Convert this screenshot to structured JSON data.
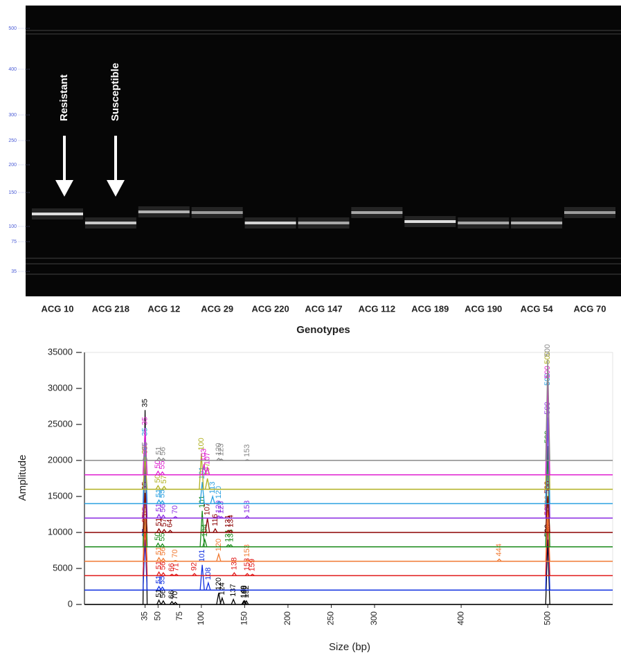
{
  "gel": {
    "ladder": [
      500,
      400,
      300,
      250,
      200,
      150,
      100,
      75,
      35
    ],
    "arrows": [
      "Resistant",
      "Susceptible"
    ],
    "lanes": [
      "ACG 10",
      "ACG 218",
      "ACG 12",
      "ACG 29",
      "ACG 220",
      "ACG 147",
      "ACG 112",
      "ACG 189",
      "ACG 190",
      "ACG 54",
      "ACG 70"
    ],
    "x_label": "Genotypes"
  },
  "chart_data": {
    "type": "line",
    "x_label": "Size (bp)",
    "y_label": "Amplitude",
    "xlim": [
      -35,
      575
    ],
    "ylim": [
      0,
      35000
    ],
    "xticks": [
      35,
      50,
      75,
      100,
      150,
      200,
      250,
      300,
      400,
      500
    ],
    "yticks": [
      0,
      5000,
      10000,
      15000,
      20000,
      25000,
      30000,
      35000
    ],
    "series": [
      {
        "color": "#000000",
        "offset": 0,
        "x": [
          35,
          51,
          56,
          66,
          70,
          120,
          124,
          137,
          149,
          150,
          152,
          500
        ],
        "values": [
          27000,
          600,
          500,
          400,
          300,
          1600,
          900,
          700,
          500,
          500,
          500,
          9000
        ]
      },
      {
        "color": "#1030e0",
        "offset": 2000,
        "x": [
          35,
          51,
          55,
          101,
          108,
          500
        ],
        "values": [
          9000,
          2500,
          2400,
          5500,
          3000,
          12000
        ]
      },
      {
        "color": "#e01818",
        "offset": 4000,
        "x": [
          35,
          51,
          56,
          66,
          71,
          92,
          138,
          153,
          159,
          500
        ],
        "values": [
          11000,
          4500,
          4400,
          4200,
          4200,
          4300,
          4400,
          4300,
          4200,
          12000
        ]
      },
      {
        "color": "#f07830",
        "offset": 6000,
        "x": [
          35,
          51,
          56,
          70,
          120,
          153,
          444,
          500
        ],
        "values": [
          12000,
          6500,
          6400,
          6100,
          7000,
          6200,
          6300,
          13000
        ]
      },
      {
        "color": "#1a8a1a",
        "offset": 8000,
        "x": [
          35,
          50,
          55,
          101,
          104,
          131,
          134,
          500
        ],
        "values": [
          20500,
          8500,
          8400,
          13000,
          9000,
          8300,
          8300,
          22000
        ]
      },
      {
        "color": "#8b0000",
        "offset": 10000,
        "x": [
          35,
          51,
          57,
          64,
          107,
          116,
          131,
          134,
          500
        ],
        "values": [
          15500,
          10500,
          10400,
          10300,
          12000,
          10500,
          10300,
          10300,
          15000
        ]
      },
      {
        "color": "#8a2be2",
        "offset": 12000,
        "x": [
          35,
          51,
          56,
          70,
          120,
          123,
          153,
          500
        ],
        "values": [
          21000,
          12500,
          12400,
          12200,
          12300,
          12200,
          12300,
          26000
        ]
      },
      {
        "color": "#2aa0e0",
        "offset": 14000,
        "x": [
          35,
          51,
          55,
          101,
          113,
          120,
          500
        ],
        "values": [
          23000,
          14500,
          14400,
          17000,
          15000,
          14300,
          30000
        ]
      },
      {
        "color": "#b0b020",
        "offset": 16000,
        "x": [
          35,
          50,
          57,
          100,
          107,
          500
        ],
        "values": [
          20500,
          16500,
          16400,
          21000,
          17500,
          33000
        ]
      },
      {
        "color": "#e020d0",
        "offset": 18000,
        "x": [
          35,
          50,
          55,
          103,
          107,
          500
        ],
        "values": [
          24500,
          18500,
          18400,
          19500,
          19000,
          31000
        ]
      },
      {
        "color": "#888888",
        "offset": 20000,
        "x": [
          35,
          51,
          56,
          120,
          123,
          153,
          500
        ],
        "values": [
          21000,
          20400,
          20300,
          20300,
          20200,
          20100,
          34000
        ]
      }
    ]
  }
}
